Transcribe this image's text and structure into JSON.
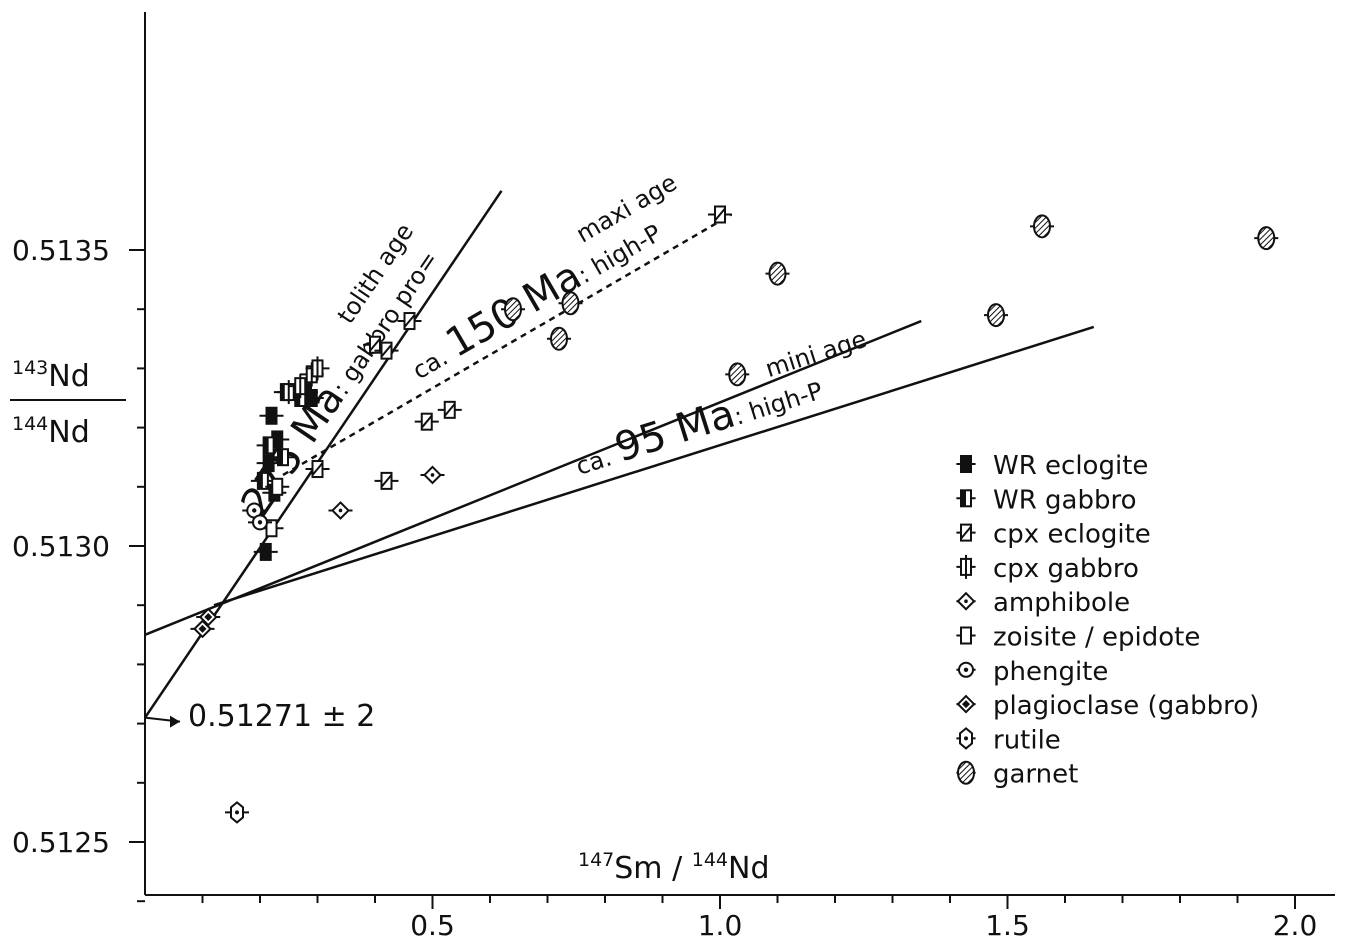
{
  "chart_data": {
    "type": "scatter",
    "title": "",
    "xlabel_parts": {
      "sup1": "147",
      "el1": "Sm",
      "slash": " / ",
      "sup2": "144",
      "el2": "Nd"
    },
    "ylabel_parts": {
      "num_sup": "143",
      "num_el": "Nd",
      "den_sup": "144",
      "den_el": "Nd"
    },
    "xlim": [
      0,
      2.05
    ],
    "ylim": [
      0.5124,
      0.51345
    ],
    "x_ticks": [
      {
        "v": 0.5,
        "label": "0.5"
      },
      {
        "v": 1.0,
        "label": "1.0"
      },
      {
        "v": 1.5,
        "label": "1.5"
      },
      {
        "v": 2.0,
        "label": "2.0"
      }
    ],
    "y_ticks": [
      {
        "v": 0.5125,
        "label": "0.5125"
      },
      {
        "v": 0.513,
        "label": "0.5130"
      },
      {
        "v": 0.5135,
        "label": "0.5135"
      }
    ],
    "series": [
      {
        "name": "WR eclogite",
        "marker": "filled-square",
        "points": [
          [
            0.21,
            0.51299
          ],
          [
            0.215,
            0.51314
          ],
          [
            0.22,
            0.51322
          ],
          [
            0.225,
            0.51309
          ],
          [
            0.23,
            0.51318
          ],
          [
            0.28,
            0.51326
          ],
          [
            0.29,
            0.51325
          ]
        ]
      },
      {
        "name": "WR gabbro",
        "marker": "half-square",
        "points": [
          [
            0.205,
            0.51311
          ],
          [
            0.215,
            0.51317
          ],
          [
            0.24,
            0.51315
          ],
          [
            0.245,
            0.51326
          ],
          [
            0.27,
            0.51325
          ]
        ]
      },
      {
        "name": "cpx eclogite",
        "marker": "hatched-square",
        "points": [
          [
            0.3,
            0.51313
          ],
          [
            0.4,
            0.51334
          ],
          [
            0.42,
            0.51333
          ],
          [
            0.42,
            0.51311
          ],
          [
            0.46,
            0.51338
          ],
          [
            0.49,
            0.51321
          ],
          [
            0.53,
            0.51323
          ],
          [
            1.0,
            0.51356
          ]
        ]
      },
      {
        "name": "cpx gabbro",
        "marker": "plus-square",
        "points": [
          [
            0.25,
            0.51326
          ],
          [
            0.27,
            0.51327
          ],
          [
            0.29,
            0.51329
          ],
          [
            0.3,
            0.5133
          ]
        ]
      },
      {
        "name": "amphibole",
        "marker": "diamond-dot",
        "points": [
          [
            0.34,
            0.51306
          ],
          [
            0.5,
            0.51312
          ]
        ]
      },
      {
        "name": "zoisite/epidote",
        "marker": "open-rect",
        "points": [
          [
            0.22,
            0.51303
          ],
          [
            0.23,
            0.5131
          ]
        ]
      },
      {
        "name": "phengite",
        "marker": "circle-dot",
        "points": [
          [
            0.19,
            0.51306
          ],
          [
            0.2,
            0.51304
          ]
        ]
      },
      {
        "name": "plagioclase (gabbro)",
        "marker": "diamond",
        "points": [
          [
            0.1,
            0.51286
          ],
          [
            0.11,
            0.51288
          ]
        ]
      },
      {
        "name": "rutile",
        "marker": "hexagon-dot",
        "points": [
          [
            0.16,
            0.51255
          ]
        ]
      },
      {
        "name": "garnet",
        "marker": "hatched-ellipse",
        "points": [
          [
            0.64,
            0.5134
          ],
          [
            0.72,
            0.51335
          ],
          [
            0.74,
            0.51341
          ],
          [
            1.03,
            0.51329
          ],
          [
            1.1,
            0.51346
          ],
          [
            1.48,
            0.51339
          ],
          [
            1.56,
            0.51354
          ],
          [
            1.95,
            0.51352
          ]
        ]
      }
    ],
    "isochrons": [
      {
        "label_ca": "",
        "label_big": "275 Ma",
        "label_rest": ": gabbro pro=",
        "label_line2": "tolith age",
        "dashed": false,
        "from": [
          0.0,
          0.51271
        ],
        "to": [
          0.62,
          0.5136
        ]
      },
      {
        "label_ca": "ca.",
        "label_big": "150 Ma",
        "label_rest": ": high-P",
        "label_line2": "maxi age",
        "dashed": true,
        "from": [
          0.24,
          0.51312
        ],
        "to": [
          1.02,
          0.51356
        ]
      },
      {
        "label_ca": "",
        "label_big": "",
        "label_rest": "",
        "label_line2": "",
        "dashed": false,
        "from": [
          0.0,
          0.51285
        ],
        "to": [
          1.35,
          0.51338
        ]
      },
      {
        "label_ca": "ca.",
        "label_big": "95 Ma",
        "label_rest": ": high-P",
        "label_line2": "mini age",
        "dashed": false,
        "from": [
          0.12,
          0.5129
        ],
        "to": [
          1.65,
          0.51337
        ]
      }
    ],
    "intercept_annotation": "0.51271 ± 2"
  },
  "legend": {
    "placement": "right",
    "entries": [
      {
        "label": "WR eclogite",
        "marker": "filled-square"
      },
      {
        "label": "WR gabbro",
        "marker": "half-square"
      },
      {
        "label": "cpx eclogite",
        "marker": "hatched-square"
      },
      {
        "label": "cpx gabbro",
        "marker": "plus-square"
      },
      {
        "label": "amphibole",
        "marker": "diamond-dot"
      },
      {
        "label": "zoisite / epidote",
        "marker": "open-rect"
      },
      {
        "label": "phengite",
        "marker": "circle-dot"
      },
      {
        "label": "plagioclase (gabbro)",
        "marker": "diamond"
      },
      {
        "label": "rutile",
        "marker": "hexagon-dot"
      },
      {
        "label": "garnet",
        "marker": "hatched-ellipse"
      }
    ]
  }
}
